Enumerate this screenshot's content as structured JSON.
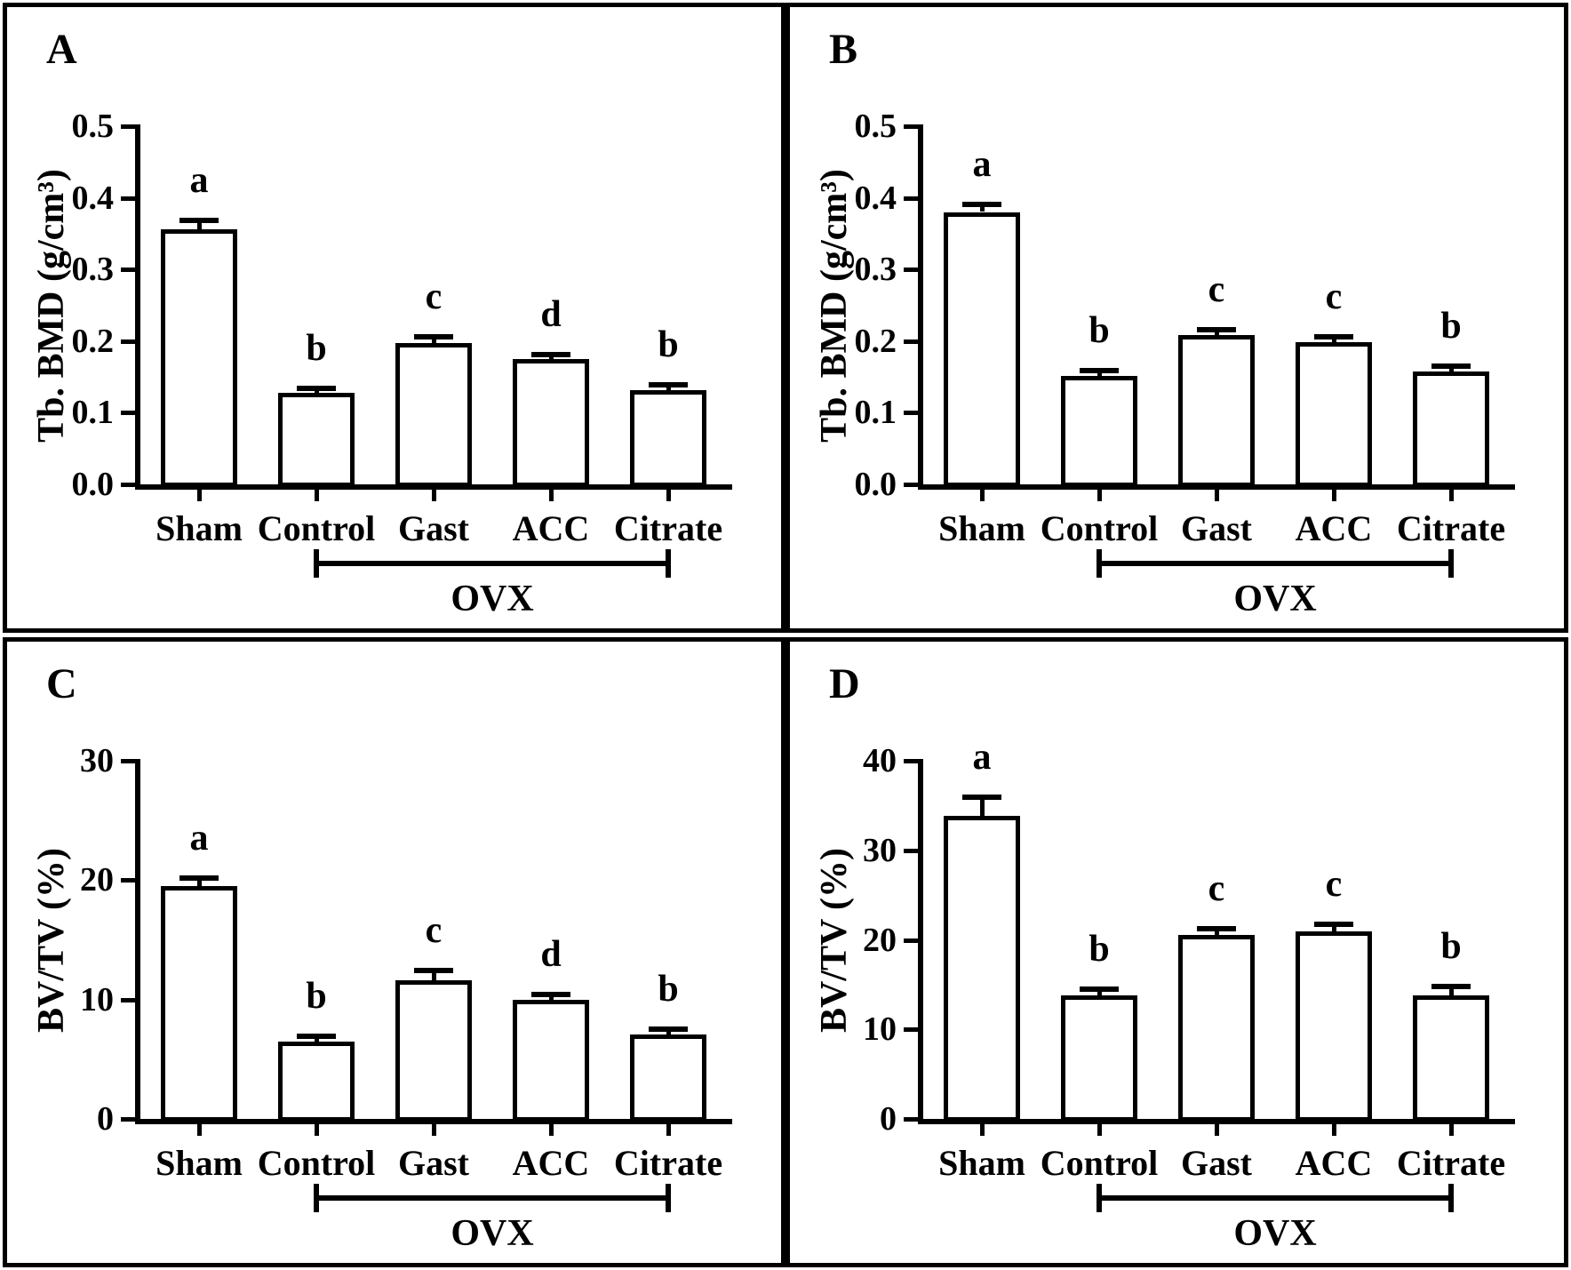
{
  "figure_title": "",
  "colors": {
    "ink": "#000000",
    "paper": "#ffffff",
    "bar_fill": "#ffffff",
    "bar_stroke": "#000000"
  },
  "chart_data": [
    {
      "type": "bar",
      "panel": "A",
      "ylabel": "Tb. BMD (g/cm³)",
      "xlabel": "",
      "categories": [
        "Sham",
        "Control",
        "Gast",
        "ACC",
        "Citrate"
      ],
      "values": [
        0.356,
        0.128,
        0.197,
        0.175,
        0.132
      ],
      "errors": [
        0.01,
        0.004,
        0.006,
        0.004,
        0.005
      ],
      "sig_letters": [
        "a",
        "b",
        "c",
        "d",
        "b"
      ],
      "ylim": [
        0,
        0.5
      ],
      "yticks": [
        "0.0",
        "0.1",
        "0.2",
        "0.3",
        "0.4",
        "0.5"
      ],
      "grid": "off",
      "legend": "none",
      "group_bracket": {
        "label": "OVX",
        "from": "Control",
        "to": "Citrate"
      }
    },
    {
      "type": "bar",
      "panel": "B",
      "ylabel": "Tb. BMD (g/cm³)",
      "xlabel": "",
      "categories": [
        "Sham",
        "Control",
        "Gast",
        "ACC",
        "Citrate"
      ],
      "values": [
        0.38,
        0.151,
        0.209,
        0.199,
        0.158
      ],
      "errors": [
        0.008,
        0.005,
        0.005,
        0.005,
        0.005
      ],
      "sig_letters": [
        "a",
        "b",
        "c",
        "c",
        "b"
      ],
      "ylim": [
        0,
        0.5
      ],
      "yticks": [
        "0.0",
        "0.1",
        "0.2",
        "0.3",
        "0.4",
        "0.5"
      ],
      "grid": "off",
      "legend": "none",
      "group_bracket": {
        "label": "OVX",
        "from": "Control",
        "to": "Citrate"
      }
    },
    {
      "type": "bar",
      "panel": "C",
      "ylabel": "BV/TV (%)",
      "xlabel": "",
      "categories": [
        "Sham",
        "Control",
        "Gast",
        "ACC",
        "Citrate"
      ],
      "values": [
        19.5,
        6.5,
        11.6,
        10.0,
        7.1
      ],
      "errors": [
        0.5,
        0.3,
        0.7,
        0.3,
        0.3
      ],
      "sig_letters": [
        "a",
        "b",
        "c",
        "d",
        "b"
      ],
      "ylim": [
        0,
        30
      ],
      "yticks": [
        "0",
        "10",
        "20",
        "30"
      ],
      "grid": "off",
      "legend": "none",
      "group_bracket": {
        "label": "OVX",
        "from": "Control",
        "to": "Citrate"
      }
    },
    {
      "type": "bar",
      "panel": "D",
      "ylabel": "BV/TV (%)",
      "xlabel": "",
      "categories": [
        "Sham",
        "Control",
        "Gast",
        "ACC",
        "Citrate"
      ],
      "values": [
        33.8,
        13.8,
        20.5,
        20.9,
        13.8
      ],
      "errors": [
        1.9,
        0.5,
        0.5,
        0.6,
        0.8
      ],
      "sig_letters": [
        "a",
        "b",
        "c",
        "c",
        "b"
      ],
      "ylim": [
        0,
        40
      ],
      "yticks": [
        "0",
        "10",
        "20",
        "30",
        "40"
      ],
      "grid": "off",
      "legend": "none",
      "group_bracket": {
        "label": "OVX",
        "from": "Control",
        "to": "Citrate"
      }
    }
  ]
}
